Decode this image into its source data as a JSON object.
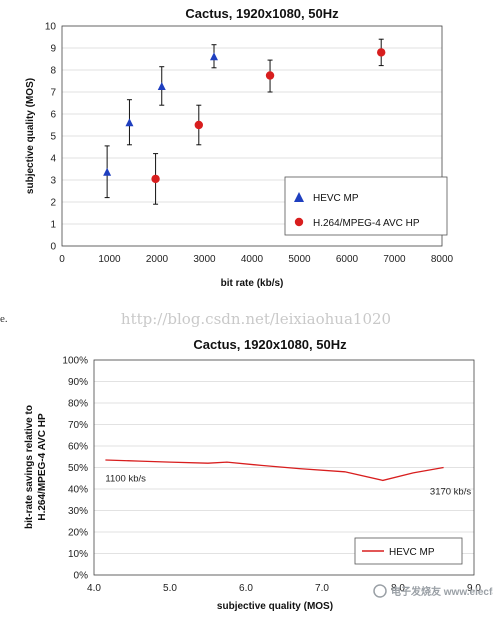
{
  "chart_data": [
    {
      "type": "scatter",
      "title": "Cactus, 1920x1080, 50Hz",
      "xlabel": "bit rate (kb/s)",
      "ylabel": "subjective quality (MOS)",
      "xlim": [
        0,
        8000
      ],
      "ylim": [
        0,
        10
      ],
      "xticks": [
        "0",
        "1000",
        "2000",
        "3000",
        "4000",
        "5000",
        "6000",
        "7000",
        "8000"
      ],
      "yticks": [
        "0",
        "1",
        "2",
        "3",
        "4",
        "5",
        "6",
        "7",
        "8",
        "9",
        "10"
      ],
      "grid": "horizontal",
      "legend_position": "bottom-right",
      "series": [
        {
          "name": "HEVC MP",
          "marker": "triangle",
          "color": "#1f3fbf",
          "points": [
            {
              "x": 950,
              "y": 3.35,
              "lo": 2.2,
              "hi": 4.55
            },
            {
              "x": 1420,
              "y": 5.6,
              "lo": 4.6,
              "hi": 6.65
            },
            {
              "x": 2100,
              "y": 7.25,
              "lo": 6.4,
              "hi": 8.15
            },
            {
              "x": 3200,
              "y": 8.6,
              "lo": 8.1,
              "hi": 9.15
            }
          ]
        },
        {
          "name": "H.264/MPEG-4 AVC HP",
          "marker": "circle",
          "color": "#d81e1e",
          "points": [
            {
              "x": 1970,
              "y": 3.05,
              "lo": 1.9,
              "hi": 4.2
            },
            {
              "x": 2880,
              "y": 5.5,
              "lo": 4.6,
              "hi": 6.4
            },
            {
              "x": 4380,
              "y": 7.75,
              "lo": 7.0,
              "hi": 8.45
            },
            {
              "x": 6720,
              "y": 8.8,
              "lo": 8.2,
              "hi": 9.4
            }
          ]
        }
      ]
    },
    {
      "type": "line",
      "title": "Cactus, 1920x1080, 50Hz",
      "xlabel": "subjective quality (MOS)",
      "ylabel_lines": [
        "bit-rate savings relative to",
        "H.264/MPEG-4 AVC HP"
      ],
      "xlim": [
        4.0,
        9.0
      ],
      "ylim": [
        0,
        100
      ],
      "xticks": [
        "4.0",
        "5.0",
        "6.0",
        "7.0",
        "8.0",
        "9.0"
      ],
      "yticks": [
        "0%",
        "10%",
        "20%",
        "30%",
        "40%",
        "50%",
        "60%",
        "70%",
        "80%",
        "90%",
        "100%"
      ],
      "grid": "horizontal",
      "legend_position": "bottom-right",
      "series": [
        {
          "name": "HEVC MP",
          "color": "#d81e1e",
          "x": [
            4.15,
            4.6,
            5.0,
            5.5,
            5.75,
            6.2,
            6.7,
            7.3,
            7.8,
            8.2,
            8.6
          ],
          "y": [
            53.5,
            53.0,
            52.5,
            52.0,
            52.5,
            51.0,
            49.5,
            48.0,
            44.0,
            47.5,
            50.0
          ]
        }
      ],
      "annotations": [
        {
          "text": "1100 kb/s",
          "x": 4.15,
          "y": 43.5
        },
        {
          "text": "3170 kb/s",
          "x": 8.42,
          "y": 37.5
        }
      ]
    }
  ],
  "watermark": "http://blog.csdn.net/leixiaohua1020",
  "stray_text": "e.",
  "logo_text": "电子发烧友 www.elecfans.com"
}
